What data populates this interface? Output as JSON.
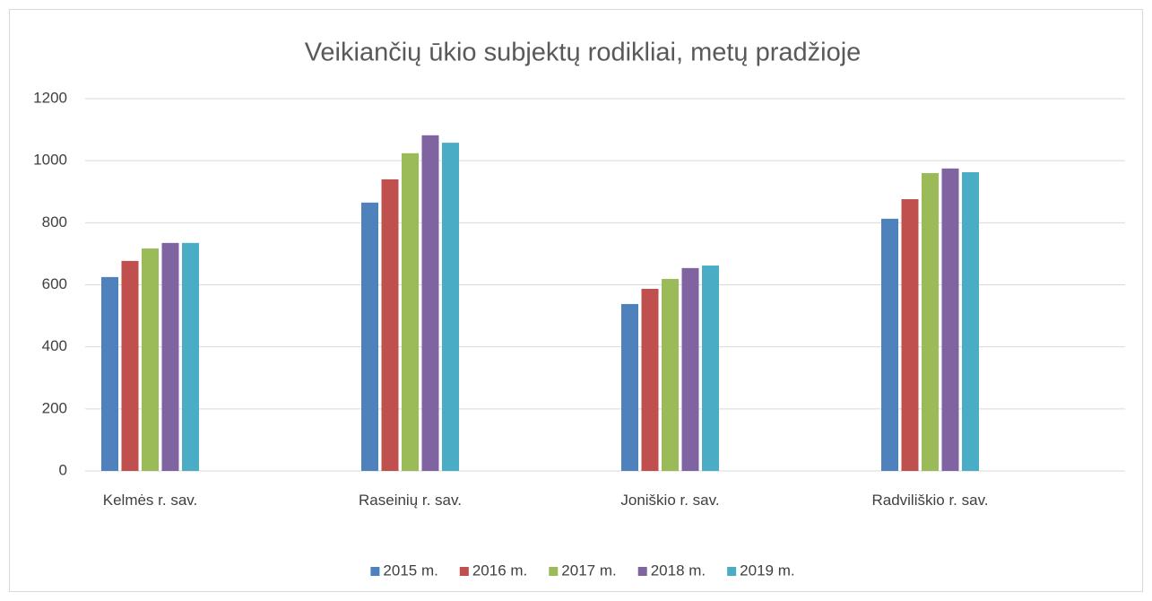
{
  "chart_data": {
    "type": "bar",
    "title": "Veikiančių ūkio subjektų rodikliai, metų pradžioje",
    "categories": [
      "Kelmės r. sav.",
      "Raseinių r. sav.",
      "Joniškio r. sav.",
      "Radviliškio r. sav."
    ],
    "series": [
      {
        "name": "2015 m.",
        "color": "#4f81bd",
        "values": [
          625,
          865,
          538,
          813
        ]
      },
      {
        "name": "2016 m.",
        "color": "#c0504d",
        "values": [
          677,
          940,
          587,
          876
        ]
      },
      {
        "name": "2017 m.",
        "color": "#9bbb59",
        "values": [
          717,
          1024,
          619,
          960
        ]
      },
      {
        "name": "2018 m.",
        "color": "#8064a2",
        "values": [
          735,
          1082,
          654,
          975
        ]
      },
      {
        "name": "2019 m.",
        "color": "#4bacc6",
        "values": [
          735,
          1058,
          662,
          963
        ]
      }
    ],
    "ylim": [
      0,
      1200
    ],
    "yticks": [
      0,
      200,
      400,
      600,
      800,
      1000,
      1200
    ],
    "grid": true,
    "legend": "bottom"
  }
}
